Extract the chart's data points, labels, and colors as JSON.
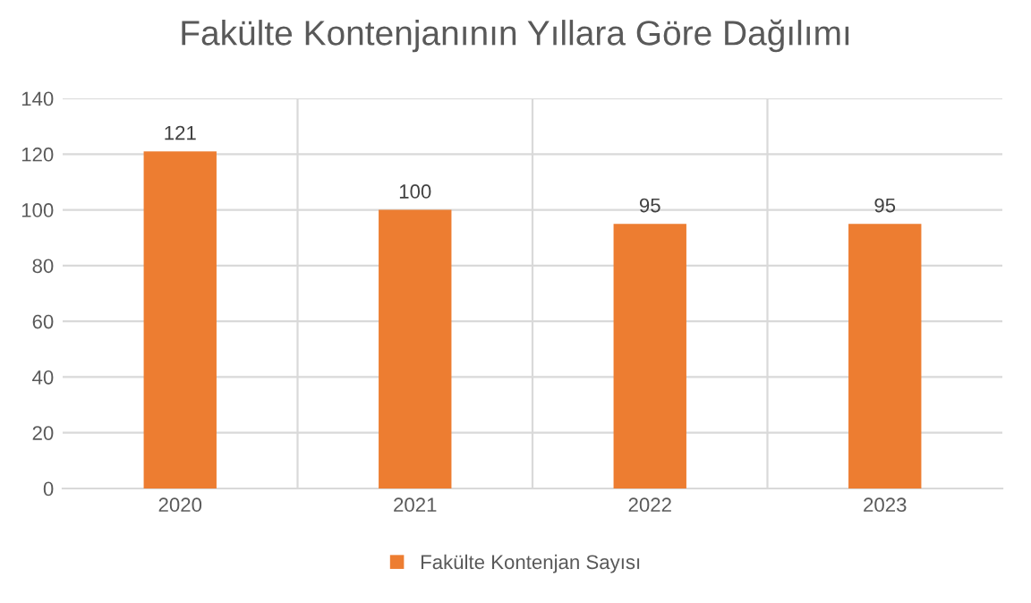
{
  "chart_data": {
    "type": "bar",
    "title": "Fakülte Kontenjanının Yıllara Göre Dağılımı",
    "categories": [
      "2020",
      "2021",
      "2022",
      "2023"
    ],
    "series": [
      {
        "name": "Fakülte Kontenjan Sayısı",
        "color": "#ed7d31",
        "values": [
          121,
          100,
          95,
          95
        ]
      }
    ],
    "ylim": [
      0,
      140
    ],
    "yticks": [
      0,
      20,
      40,
      60,
      80,
      100,
      120,
      140
    ],
    "grid": true,
    "legend": "bottom",
    "data_labels": true
  }
}
